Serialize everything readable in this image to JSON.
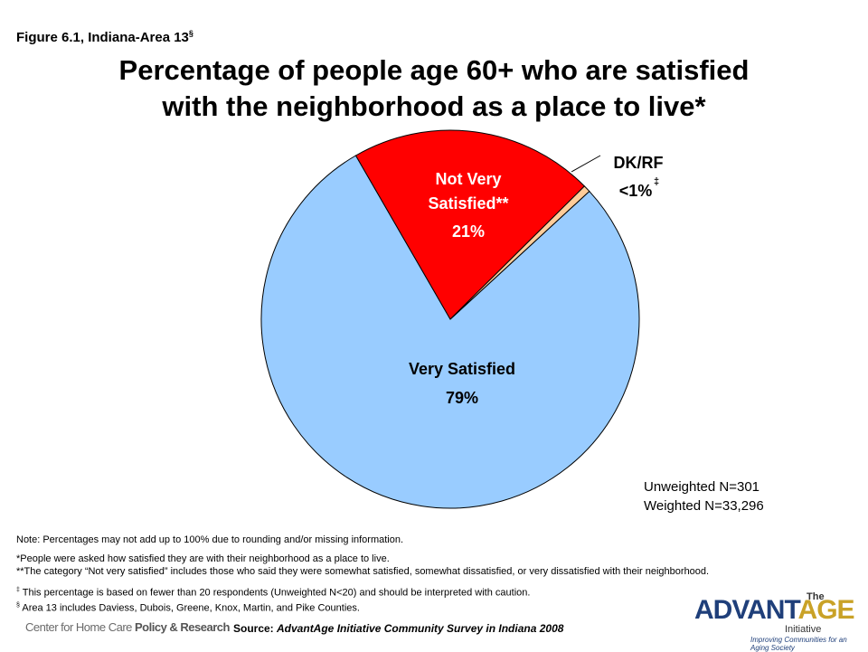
{
  "figure_label": "Figure 6.1, Indiana-Area 13",
  "figure_label_mark": "§",
  "title_line1": "Percentage of people age 60+ who are satisfied",
  "title_line2": "with the neighborhood as a place to live*",
  "chart_data": {
    "type": "pie",
    "slices": [
      {
        "label": "Very Satisfied",
        "display_value": "79%",
        "value": 78.5,
        "color": "#99ccff"
      },
      {
        "label": "Not Very Satisfied**",
        "display_value": "21%",
        "value": 20.9,
        "color": "#ff0000"
      },
      {
        "label": "DK/RF",
        "display_value": "<1%",
        "value": 0.6,
        "color": "#ffcc99",
        "mark": "‡"
      }
    ]
  },
  "sample": {
    "unweighted": "Unweighted N=301",
    "weighted": "Weighted N=33,296"
  },
  "notes": {
    "note1": "Note: Percentages may not add up to 100% due to rounding and/or missing information.",
    "note2": "*People were asked how satisfied they are with their neighborhood as a place to live.",
    "note3": "**The category “Not very satisfied” includes those who said they were somewhat satisfied, somewhat dissatisfied, or very dissatisfied with their neighborhood.",
    "note4_mark": "‡",
    "note4": " This percentage is based on fewer than 20 respondents (Unweighted N<20) and should be interpreted with caution.",
    "note5_mark": "§",
    "note5": " Area 13 includes Daviess, Dubois, Greene, Knox, Martin, and Pike Counties."
  },
  "source": {
    "prefix": "Source: ",
    "text": "AdvantAge Initiative Community Survey in Indiana 2008"
  },
  "logos": {
    "left_part1": "Center for Home Care ",
    "left_part2": "Policy & Research",
    "right_the": "The",
    "right_brand_part1": "ADVANT",
    "right_brand_part2": "AGE",
    "right_initiative": "Initiative",
    "right_tagline": "Improving Communities for an Aging Society"
  }
}
